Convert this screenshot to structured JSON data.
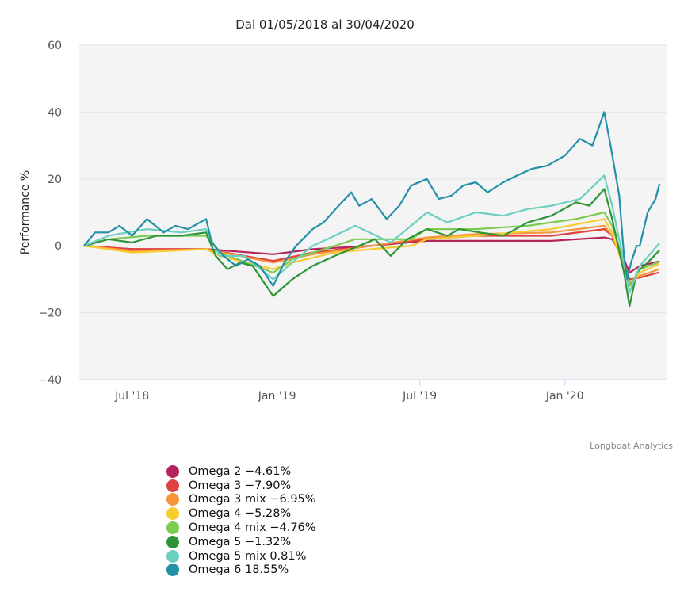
{
  "chart_data": {
    "type": "line",
    "title": "Dal 01/05/2018 al 30/04/2020",
    "ylabel": "Performance %",
    "xlabel": "",
    "ylim": [
      -40,
      60
    ],
    "xlim": [
      "2018-05-01",
      "2020-04-30"
    ],
    "yticks": [
      -40,
      -20,
      0,
      20,
      40,
      60
    ],
    "ytick_labels": [
      "−40",
      "−20",
      "0",
      "20",
      "40",
      "60"
    ],
    "xticks": [
      "2018-07-01",
      "2019-01-01",
      "2019-07-01",
      "2020-01-01"
    ],
    "xtick_labels": [
      "Jul '18",
      "Jan '19",
      "Jul '19",
      "Jan '20"
    ],
    "grid": true,
    "legend_position": "bottom-left",
    "series": [
      {
        "name": "Omega 2",
        "legend": "Omega 2 −4.61%",
        "color": "#b5245c",
        "points": [
          [
            "2018-05-01",
            0
          ],
          [
            "2018-07-01",
            -1
          ],
          [
            "2018-10-03",
            -1
          ],
          [
            "2018-12-27",
            -2.5
          ],
          [
            "2019-02-15",
            -1
          ],
          [
            "2019-05-01",
            0
          ],
          [
            "2019-07-10",
            1.5
          ],
          [
            "2019-09-10",
            1.5
          ],
          [
            "2019-12-15",
            1.5
          ],
          [
            "2020-02-20",
            2.5
          ],
          [
            "2020-03-01",
            2
          ],
          [
            "2020-03-16",
            -4
          ],
          [
            "2020-03-23",
            -8
          ],
          [
            "2020-04-05",
            -6
          ],
          [
            "2020-04-30",
            -4.61
          ]
        ]
      },
      {
        "name": "Omega 3",
        "legend": "Omega 3 −7.90%",
        "color": "#e0403f",
        "points": [
          [
            "2018-05-01",
            0
          ],
          [
            "2018-07-01",
            -1
          ],
          [
            "2018-10-03",
            -1
          ],
          [
            "2018-12-27",
            -4.5
          ],
          [
            "2019-02-15",
            -2
          ],
          [
            "2019-05-01",
            0
          ],
          [
            "2019-07-10",
            2
          ],
          [
            "2019-09-10",
            3
          ],
          [
            "2019-12-15",
            3
          ],
          [
            "2020-02-20",
            5
          ],
          [
            "2020-03-01",
            3
          ],
          [
            "2020-03-16",
            -5
          ],
          [
            "2020-03-23",
            -10
          ],
          [
            "2020-04-05",
            -9.5
          ],
          [
            "2020-04-30",
            -7.9
          ]
        ]
      },
      {
        "name": "Omega 3 mix",
        "legend": "Omega 3 mix −6.95%",
        "color": "#f7943c",
        "points": [
          [
            "2018-05-01",
            0
          ],
          [
            "2018-07-01",
            -1.5
          ],
          [
            "2018-10-03",
            -1
          ],
          [
            "2018-12-27",
            -5
          ],
          [
            "2019-02-15",
            -2.5
          ],
          [
            "2019-05-01",
            0
          ],
          [
            "2019-07-10",
            2.5
          ],
          [
            "2019-09-10",
            3.5
          ],
          [
            "2019-12-15",
            4
          ],
          [
            "2020-02-20",
            6
          ],
          [
            "2020-03-01",
            3
          ],
          [
            "2020-03-16",
            -6
          ],
          [
            "2020-03-23",
            -11
          ],
          [
            "2020-04-05",
            -9
          ],
          [
            "2020-04-30",
            -6.95
          ]
        ]
      },
      {
        "name": "Omega 4",
        "legend": "Omega 4 −5.28%",
        "color": "#f6cc2e",
        "points": [
          [
            "2018-05-01",
            0
          ],
          [
            "2018-06-01",
            -1
          ],
          [
            "2018-07-01",
            -2
          ],
          [
            "2018-10-03",
            -1
          ],
          [
            "2018-10-20",
            -3
          ],
          [
            "2018-12-27",
            -7
          ],
          [
            "2019-01-20",
            -5
          ],
          [
            "2019-03-15",
            -2
          ],
          [
            "2019-05-01",
            -1
          ],
          [
            "2019-06-20",
            0
          ],
          [
            "2019-07-10",
            2
          ],
          [
            "2019-09-10",
            3
          ],
          [
            "2019-12-15",
            5
          ],
          [
            "2020-02-20",
            8
          ],
          [
            "2020-03-01",
            4
          ],
          [
            "2020-03-16",
            -7
          ],
          [
            "2020-03-23",
            -12
          ],
          [
            "2020-04-05",
            -8
          ],
          [
            "2020-04-30",
            -5.28
          ]
        ]
      },
      {
        "name": "Omega 4 mix",
        "legend": "Omega 4 mix −4.76%",
        "color": "#7ccc52",
        "points": [
          [
            "2018-05-01",
            0
          ],
          [
            "2018-06-01",
            2
          ],
          [
            "2018-07-20",
            3
          ],
          [
            "2018-10-03",
            3
          ],
          [
            "2018-10-20",
            -2
          ],
          [
            "2018-12-27",
            -8
          ],
          [
            "2019-01-20",
            -4
          ],
          [
            "2019-03-15",
            0
          ],
          [
            "2019-04-10",
            2
          ],
          [
            "2019-06-20",
            2
          ],
          [
            "2019-07-10",
            5
          ],
          [
            "2019-09-10",
            5
          ],
          [
            "2019-11-15",
            6
          ],
          [
            "2020-01-15",
            8
          ],
          [
            "2020-02-20",
            10
          ],
          [
            "2020-03-01",
            6
          ],
          [
            "2020-03-16",
            -5
          ],
          [
            "2020-03-23",
            -12
          ],
          [
            "2020-04-05",
            -7
          ],
          [
            "2020-04-30",
            -4.76
          ]
        ]
      },
      {
        "name": "Omega 5",
        "legend": "Omega 5 −1.32%",
        "color": "#2e9438",
        "points": [
          [
            "2018-05-01",
            0
          ],
          [
            "2018-06-01",
            2
          ],
          [
            "2018-07-01",
            1
          ],
          [
            "2018-08-01",
            3
          ],
          [
            "2018-09-01",
            3
          ],
          [
            "2018-10-03",
            4
          ],
          [
            "2018-10-15",
            -3
          ],
          [
            "2018-10-30",
            -7
          ],
          [
            "2018-11-15",
            -5
          ],
          [
            "2018-12-01",
            -6
          ],
          [
            "2018-12-27",
            -15
          ],
          [
            "2019-01-20",
            -10
          ],
          [
            "2019-02-15",
            -6
          ],
          [
            "2019-03-15",
            -3
          ],
          [
            "2019-04-15",
            0
          ],
          [
            "2019-05-05",
            2
          ],
          [
            "2019-05-25",
            -3
          ],
          [
            "2019-06-15",
            2
          ],
          [
            "2019-07-10",
            5
          ],
          [
            "2019-08-05",
            3
          ],
          [
            "2019-08-20",
            5
          ],
          [
            "2019-09-15",
            4
          ],
          [
            "2019-10-15",
            3
          ],
          [
            "2019-11-15",
            7
          ],
          [
            "2019-12-15",
            9
          ],
          [
            "2020-01-15",
            13
          ],
          [
            "2020-02-01",
            12
          ],
          [
            "2020-02-20",
            17
          ],
          [
            "2020-03-01",
            8
          ],
          [
            "2020-03-16",
            -8
          ],
          [
            "2020-03-23",
            -18
          ],
          [
            "2020-04-01",
            -8
          ],
          [
            "2020-04-15",
            -5
          ],
          [
            "2020-04-30",
            -1.32
          ]
        ]
      },
      {
        "name": "Omega 5 mix",
        "legend": "Omega 5 mix 0.81%",
        "color": "#6dcfc0",
        "points": [
          [
            "2018-05-01",
            0
          ],
          [
            "2018-06-01",
            3
          ],
          [
            "2018-07-20",
            5
          ],
          [
            "2018-09-01",
            4
          ],
          [
            "2018-10-03",
            5
          ],
          [
            "2018-10-20",
            -3
          ],
          [
            "2018-11-20",
            -3
          ],
          [
            "2018-12-27",
            -10
          ],
          [
            "2019-01-20",
            -5
          ],
          [
            "2019-02-15",
            0
          ],
          [
            "2019-03-15",
            3
          ],
          [
            "2019-04-10",
            6
          ],
          [
            "2019-05-25",
            1
          ],
          [
            "2019-06-20",
            6
          ],
          [
            "2019-07-10",
            10
          ],
          [
            "2019-08-05",
            7
          ],
          [
            "2019-09-10",
            10
          ],
          [
            "2019-10-15",
            9
          ],
          [
            "2019-11-15",
            11
          ],
          [
            "2019-12-15",
            12
          ],
          [
            "2020-01-20",
            14
          ],
          [
            "2020-02-20",
            21
          ],
          [
            "2020-03-01",
            12
          ],
          [
            "2020-03-16",
            -5
          ],
          [
            "2020-03-23",
            -14
          ],
          [
            "2020-04-05",
            -6
          ],
          [
            "2020-04-30",
            0.81
          ]
        ]
      },
      {
        "name": "Omega 6",
        "legend": "Omega 6 18.55%",
        "color": "#2390a8",
        "points": [
          [
            "2018-05-01",
            0
          ],
          [
            "2018-05-15",
            4
          ],
          [
            "2018-06-01",
            4
          ],
          [
            "2018-06-15",
            6
          ],
          [
            "2018-07-01",
            3
          ],
          [
            "2018-07-20",
            8
          ],
          [
            "2018-08-10",
            4
          ],
          [
            "2018-08-25",
            6
          ],
          [
            "2018-09-10",
            5
          ],
          [
            "2018-09-25",
            7
          ],
          [
            "2018-10-03",
            8
          ],
          [
            "2018-10-10",
            1
          ],
          [
            "2018-10-25",
            -3
          ],
          [
            "2018-11-10",
            -6
          ],
          [
            "2018-11-25",
            -4
          ],
          [
            "2018-12-10",
            -6
          ],
          [
            "2018-12-27",
            -12
          ],
          [
            "2019-01-10",
            -5
          ],
          [
            "2019-01-25",
            0
          ],
          [
            "2019-02-15",
            5
          ],
          [
            "2019-03-01",
            7
          ],
          [
            "2019-03-20",
            12
          ],
          [
            "2019-04-05",
            16
          ],
          [
            "2019-04-15",
            12
          ],
          [
            "2019-05-01",
            14
          ],
          [
            "2019-05-20",
            8
          ],
          [
            "2019-06-05",
            12
          ],
          [
            "2019-06-20",
            18
          ],
          [
            "2019-07-10",
            20
          ],
          [
            "2019-07-25",
            14
          ],
          [
            "2019-08-10",
            15
          ],
          [
            "2019-08-25",
            18
          ],
          [
            "2019-09-10",
            19
          ],
          [
            "2019-09-25",
            16
          ],
          [
            "2019-10-15",
            19
          ],
          [
            "2019-11-01",
            21
          ],
          [
            "2019-11-20",
            23
          ],
          [
            "2019-12-10",
            24
          ],
          [
            "2020-01-01",
            27
          ],
          [
            "2020-01-20",
            32
          ],
          [
            "2020-02-05",
            30
          ],
          [
            "2020-02-20",
            40
          ],
          [
            "2020-02-28",
            30
          ],
          [
            "2020-03-10",
            15
          ],
          [
            "2020-03-16",
            -3
          ],
          [
            "2020-03-20",
            -10
          ],
          [
            "2020-03-25",
            -5
          ],
          [
            "2020-04-01",
            0
          ],
          [
            "2020-04-05",
            0
          ],
          [
            "2020-04-15",
            10
          ],
          [
            "2020-04-25",
            14
          ],
          [
            "2020-04-30",
            18.55
          ]
        ]
      }
    ]
  },
  "credit": "Longboat Analytics"
}
